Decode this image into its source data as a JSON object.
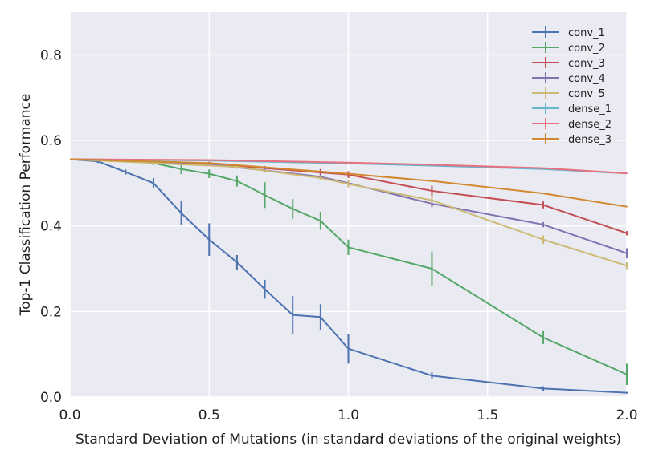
{
  "chart_data": {
    "type": "line",
    "title": "",
    "xlabel": "Standard Deviation of Mutations (in standard deviations of the original weights)",
    "ylabel": "Top-1 Classification Performance",
    "xlim": [
      0.0,
      2.0
    ],
    "ylim": [
      0.0,
      0.9
    ],
    "xticks": [
      0.0,
      0.5,
      1.0,
      1.5,
      2.0
    ],
    "xtick_labels": [
      "0.0",
      "0.5",
      "1.0",
      "1.5",
      "2.0"
    ],
    "yticks": [
      0.0,
      0.2,
      0.4,
      0.6,
      0.8
    ],
    "ytick_labels": [
      "0.0",
      "0.2",
      "0.4",
      "0.6",
      "0.8"
    ],
    "grid": true,
    "legend_position": "top-right",
    "series": [
      {
        "name": "conv_1",
        "color": "#4c72b0",
        "points": [
          {
            "x": 0.0,
            "y": 0.556,
            "err": 0.0
          },
          {
            "x": 0.1,
            "y": 0.551,
            "err": 0.004
          },
          {
            "x": 0.2,
            "y": 0.526,
            "err": 0.006
          },
          {
            "x": 0.3,
            "y": 0.5,
            "err": 0.012
          },
          {
            "x": 0.4,
            "y": 0.43,
            "err": 0.028
          },
          {
            "x": 0.5,
            "y": 0.368,
            "err": 0.038
          },
          {
            "x": 0.6,
            "y": 0.315,
            "err": 0.017
          },
          {
            "x": 0.7,
            "y": 0.252,
            "err": 0.022
          },
          {
            "x": 0.8,
            "y": 0.192,
            "err": 0.044
          },
          {
            "x": 0.9,
            "y": 0.187,
            "err": 0.03
          },
          {
            "x": 1.0,
            "y": 0.113,
            "err": 0.035
          },
          {
            "x": 1.3,
            "y": 0.05,
            "err": 0.008
          },
          {
            "x": 1.7,
            "y": 0.02,
            "err": 0.005
          },
          {
            "x": 2.0,
            "y": 0.01,
            "err": 0.002
          }
        ]
      },
      {
        "name": "conv_2",
        "color": "#55a868",
        "points": [
          {
            "x": 0.0,
            "y": 0.556,
            "err": 0.0
          },
          {
            "x": 0.1,
            "y": 0.555,
            "err": 0.002
          },
          {
            "x": 0.2,
            "y": 0.553,
            "err": 0.003
          },
          {
            "x": 0.3,
            "y": 0.547,
            "err": 0.005
          },
          {
            "x": 0.4,
            "y": 0.533,
            "err": 0.012
          },
          {
            "x": 0.5,
            "y": 0.522,
            "err": 0.01
          },
          {
            "x": 0.6,
            "y": 0.505,
            "err": 0.013
          },
          {
            "x": 0.7,
            "y": 0.472,
            "err": 0.03
          },
          {
            "x": 0.8,
            "y": 0.44,
            "err": 0.023
          },
          {
            "x": 0.9,
            "y": 0.412,
            "err": 0.021
          },
          {
            "x": 1.0,
            "y": 0.35,
            "err": 0.018
          },
          {
            "x": 1.3,
            "y": 0.3,
            "err": 0.04
          },
          {
            "x": 1.7,
            "y": 0.139,
            "err": 0.015
          },
          {
            "x": 2.0,
            "y": 0.053,
            "err": 0.025
          }
        ]
      },
      {
        "name": "conv_3",
        "color": "#c44e52",
        "points": [
          {
            "x": 0.0,
            "y": 0.556,
            "err": 0.0
          },
          {
            "x": 0.5,
            "y": 0.546,
            "err": 0.004
          },
          {
            "x": 0.7,
            "y": 0.535,
            "err": 0.005
          },
          {
            "x": 0.9,
            "y": 0.525,
            "err": 0.008
          },
          {
            "x": 1.0,
            "y": 0.52,
            "err": 0.008
          },
          {
            "x": 1.3,
            "y": 0.482,
            "err": 0.012
          },
          {
            "x": 1.7,
            "y": 0.449,
            "err": 0.008
          },
          {
            "x": 2.0,
            "y": 0.383,
            "err": 0.005
          }
        ]
      },
      {
        "name": "conv_4",
        "color": "#8172b2",
        "points": [
          {
            "x": 0.0,
            "y": 0.556,
            "err": 0.0
          },
          {
            "x": 0.5,
            "y": 0.544,
            "err": 0.004
          },
          {
            "x": 0.7,
            "y": 0.53,
            "err": 0.005
          },
          {
            "x": 0.9,
            "y": 0.515,
            "err": 0.006
          },
          {
            "x": 1.0,
            "y": 0.5,
            "err": 0.008
          },
          {
            "x": 1.3,
            "y": 0.452,
            "err": 0.008
          },
          {
            "x": 1.7,
            "y": 0.403,
            "err": 0.006
          },
          {
            "x": 2.0,
            "y": 0.336,
            "err": 0.012
          }
        ]
      },
      {
        "name": "conv_5",
        "color": "#ccb974",
        "points": [
          {
            "x": 0.0,
            "y": 0.556,
            "err": 0.0
          },
          {
            "x": 0.6,
            "y": 0.538,
            "err": 0.004
          },
          {
            "x": 0.9,
            "y": 0.512,
            "err": 0.005
          },
          {
            "x": 1.0,
            "y": 0.498,
            "err": 0.008
          },
          {
            "x": 1.3,
            "y": 0.46,
            "err": 0.008
          },
          {
            "x": 1.7,
            "y": 0.368,
            "err": 0.01
          },
          {
            "x": 2.0,
            "y": 0.307,
            "err": 0.008
          }
        ]
      },
      {
        "name": "dense_1",
        "color": "#64b5cd",
        "points": [
          {
            "x": 0.0,
            "y": 0.556,
            "err": 0.0
          },
          {
            "x": 0.5,
            "y": 0.553,
            "err": 0.001
          },
          {
            "x": 1.0,
            "y": 0.546,
            "err": 0.001
          },
          {
            "x": 1.3,
            "y": 0.541,
            "err": 0.001
          },
          {
            "x": 1.7,
            "y": 0.533,
            "err": 0.001
          },
          {
            "x": 2.0,
            "y": 0.523,
            "err": 0.001
          }
        ]
      },
      {
        "name": "dense_2",
        "color": "#e8707f",
        "points": [
          {
            "x": 0.0,
            "y": 0.556,
            "err": 0.0
          },
          {
            "x": 0.5,
            "y": 0.554,
            "err": 0.001
          },
          {
            "x": 1.0,
            "y": 0.548,
            "err": 0.001
          },
          {
            "x": 1.3,
            "y": 0.543,
            "err": 0.001
          },
          {
            "x": 1.7,
            "y": 0.535,
            "err": 0.001
          },
          {
            "x": 2.0,
            "y": 0.523,
            "err": 0.001
          }
        ]
      },
      {
        "name": "dense_3",
        "color": "#d2882f",
        "points": [
          {
            "x": 0.0,
            "y": 0.556,
            "err": 0.0
          },
          {
            "x": 0.5,
            "y": 0.547,
            "err": 0.001
          },
          {
            "x": 1.0,
            "y": 0.522,
            "err": 0.001
          },
          {
            "x": 1.3,
            "y": 0.505,
            "err": 0.001
          },
          {
            "x": 1.7,
            "y": 0.476,
            "err": 0.001
          },
          {
            "x": 2.0,
            "y": 0.445,
            "err": 0.001
          }
        ]
      }
    ]
  }
}
